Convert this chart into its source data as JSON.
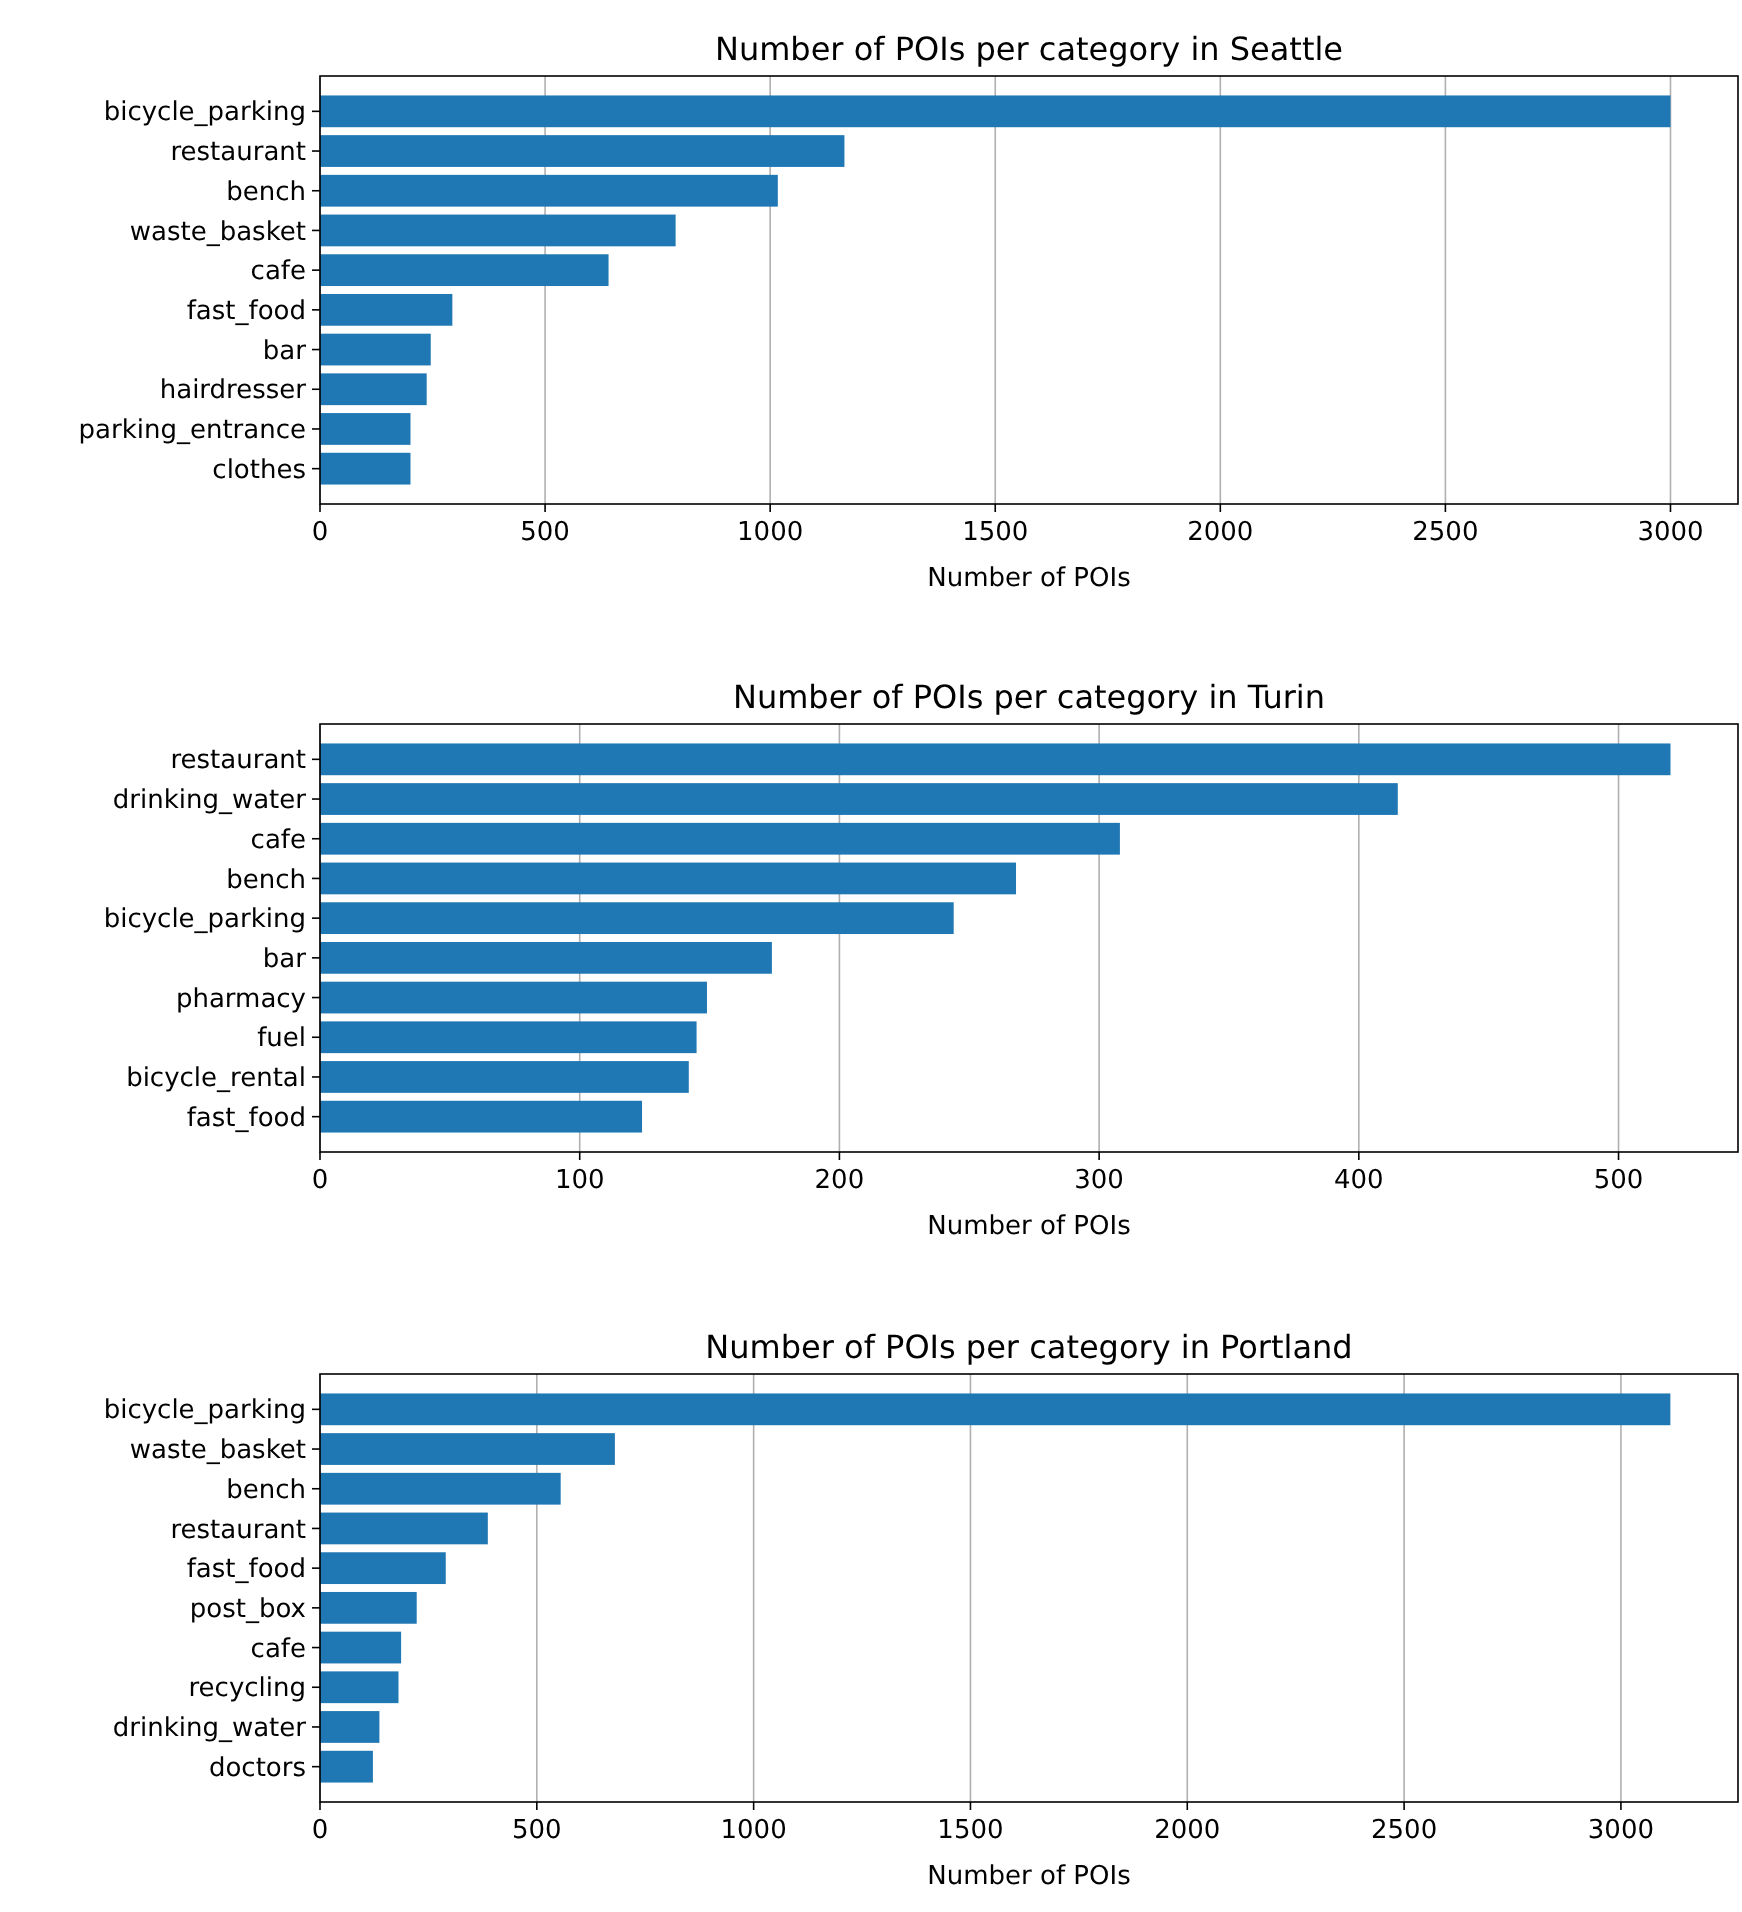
{
  "chart_data": [
    {
      "type": "bar",
      "orientation": "horizontal",
      "title": "Number of POIs per category in Seattle",
      "xlabel": "Number of POIs",
      "categories": [
        "bicycle_parking",
        "restaurant",
        "bench",
        "waste_basket",
        "cafe",
        "fast_food",
        "bar",
        "hairdresser",
        "parking_entrance",
        "clothes"
      ],
      "values": [
        3000,
        1165,
        1017,
        790,
        641,
        294,
        246,
        237,
        201,
        201
      ],
      "color": "#1f77b4",
      "xlim": [
        0,
        3150
      ],
      "xticks": [
        0,
        500,
        1000,
        1500,
        2000,
        2500,
        3000
      ],
      "grid": "x"
    },
    {
      "type": "bar",
      "orientation": "horizontal",
      "title": "Number of POIs per category in Turin",
      "xlabel": "Number of POIs",
      "categories": [
        "restaurant",
        "drinking_water",
        "cafe",
        "bench",
        "bicycle_parking",
        "bar",
        "pharmacy",
        "fuel",
        "bicycle_rental",
        "fast_food"
      ],
      "values": [
        520,
        415,
        308,
        268,
        244,
        174,
        149,
        145,
        142,
        124
      ],
      "color": "#1f77b4",
      "xlim": [
        0,
        546
      ],
      "xticks": [
        0,
        100,
        200,
        300,
        400,
        500
      ],
      "grid": "x"
    },
    {
      "type": "bar",
      "orientation": "horizontal",
      "title": "Number of POIs per category in Portland",
      "xlabel": "Number of POIs",
      "categories": [
        "bicycle_parking",
        "waste_basket",
        "bench",
        "restaurant",
        "fast_food",
        "post_box",
        "cafe",
        "recycling",
        "drinking_water",
        "doctors"
      ],
      "values": [
        3114,
        680,
        555,
        387,
        290,
        223,
        187,
        181,
        137,
        122
      ],
      "color": "#1f77b4",
      "xlim": [
        0,
        3270
      ],
      "xticks": [
        0,
        500,
        1000,
        1500,
        2000,
        2500,
        3000
      ],
      "grid": "x"
    }
  ]
}
